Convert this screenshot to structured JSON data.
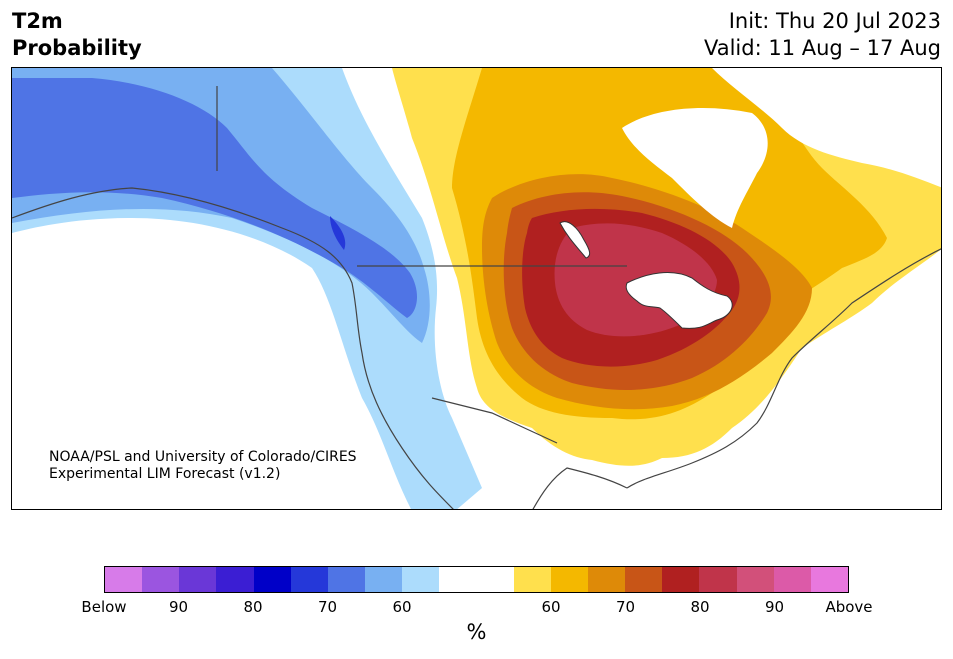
{
  "header": {
    "variable": "T2m",
    "kind": "Probability",
    "init": "Init: Thu 20 Jul 2023",
    "valid": "Valid: 11 Aug – 17 Aug"
  },
  "credit": {
    "line1": "NOAA/PSL and University of Colorado/CIRES",
    "line2": "Experimental LIM Forecast (v1.2)"
  },
  "colorbar": {
    "unit": "%",
    "tick_labels": [
      "Below",
      "90",
      "80",
      "70",
      "60",
      "60",
      "70",
      "80",
      "90",
      "Above"
    ],
    "below_colors": [
      "#d77be9",
      "#9b55e0",
      "#6a37d7",
      "#3b1ed3",
      "#0000c8",
      "#2538d9",
      "#4f74e5",
      "#78b0f2",
      "#acdcfc"
    ],
    "neutral_color": "#ffffff",
    "above_colors": [
      "#ffe04d",
      "#f4b800",
      "#de8a08",
      "#c85517",
      "#b02020",
      "#c0344a",
      "#d2507a",
      "#dc5aa8",
      "#e878de"
    ]
  },
  "map": {
    "region": "North America",
    "land_color": "#ffffff",
    "water_color": "#ffffff",
    "border_color": "#444444",
    "dominant_signal": "above-normal probability centered over the Upper Midwest and Great Lakes; below-normal along the Alaska and Pacific Northwest coasts"
  }
}
